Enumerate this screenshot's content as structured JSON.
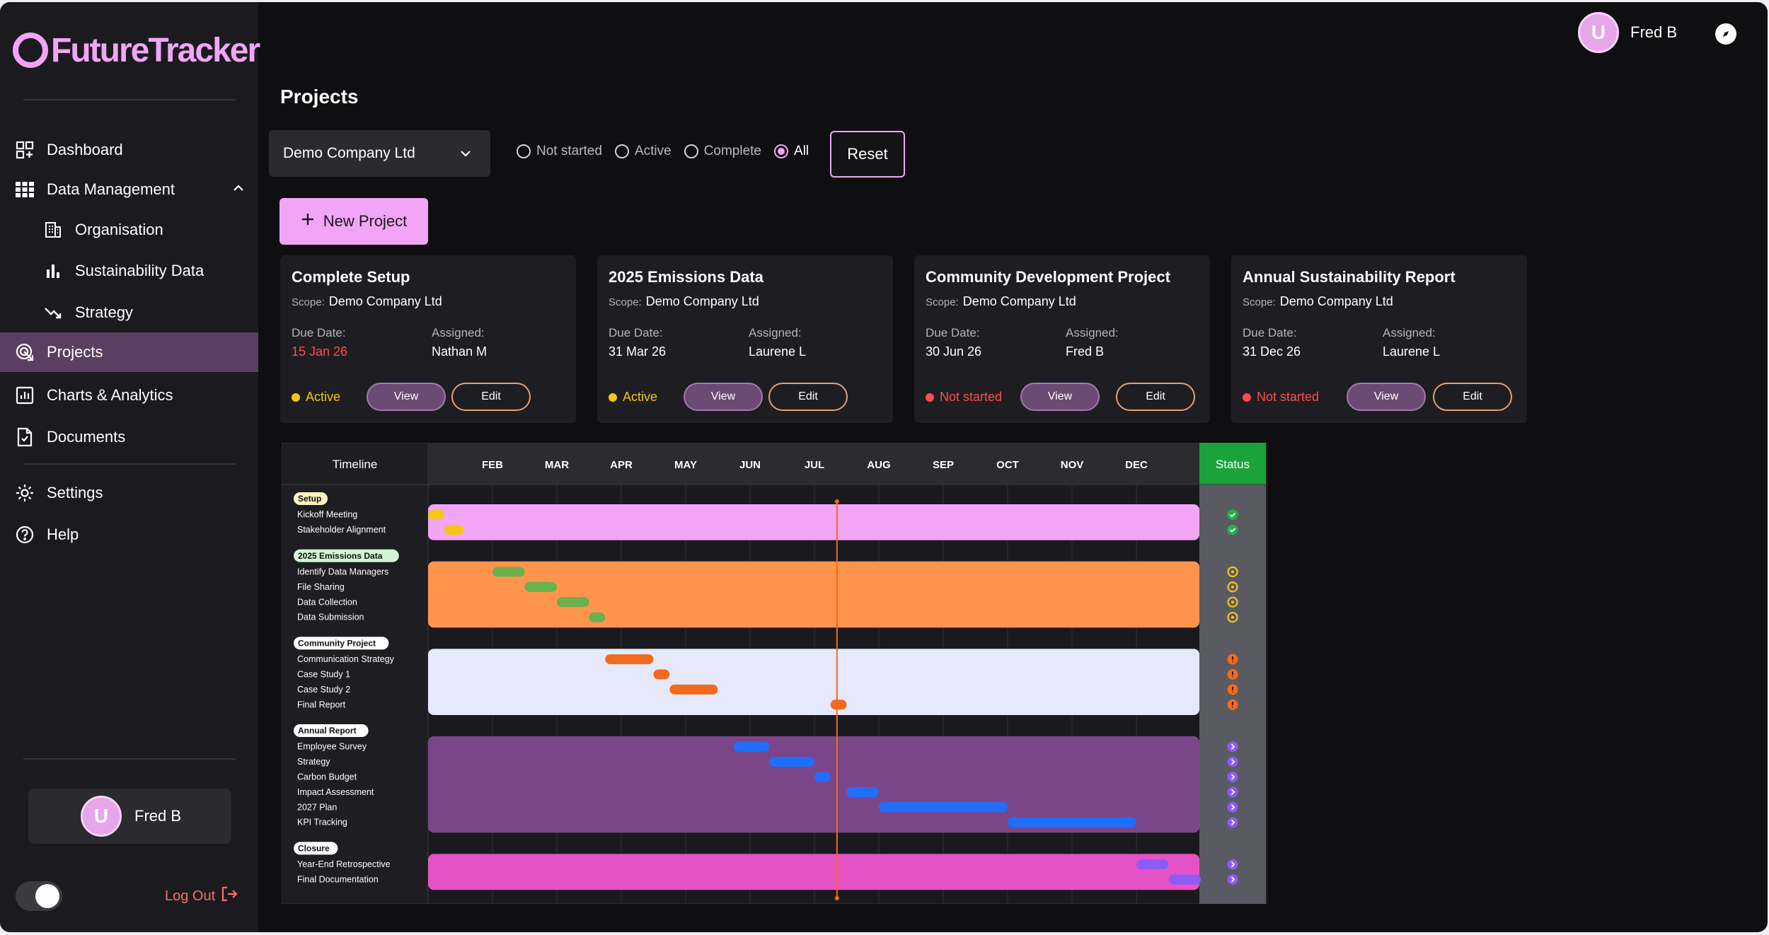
{
  "app": {
    "name": "FutureTracker"
  },
  "sidebar": {
    "items": [
      {
        "label": "Dashboard",
        "icon": "dashboard-icon"
      },
      {
        "label": "Data Management",
        "icon": "grid-icon"
      },
      {
        "label": "Organisation",
        "icon": "building-icon"
      },
      {
        "label": "Sustainability Data",
        "icon": "bar-chart-icon"
      },
      {
        "label": "Strategy",
        "icon": "trend-down-icon"
      },
      {
        "label": "Projects",
        "icon": "target-icon"
      },
      {
        "label": "Charts & Analytics",
        "icon": "analytics-icon"
      },
      {
        "label": "Documents",
        "icon": "document-icon"
      },
      {
        "label": "Settings",
        "icon": "gear-icon"
      },
      {
        "label": "Help",
        "icon": "help-icon"
      }
    ],
    "active": "Projects",
    "user": {
      "name": "Fred B",
      "initial": "U"
    },
    "logout_label": "Log Out"
  },
  "header": {
    "user_name": "Fred B",
    "initial": "U"
  },
  "page": {
    "title": "Projects"
  },
  "filters": {
    "company": "Demo Company Ltd",
    "options": [
      "Not started",
      "Active",
      "Complete",
      "All"
    ],
    "selected": "All",
    "reset_label": "Reset"
  },
  "new_project_label": "New Project",
  "card_labels": {
    "scope": "Scope:",
    "due": "Due Date:",
    "assigned": "Assigned:",
    "view": "View",
    "edit": "Edit"
  },
  "projects": [
    {
      "title": "Complete Setup",
      "scope": "Demo Company Ltd",
      "due": "15 Jan 26",
      "assigned": "Nathan M",
      "status": "Active",
      "overdue": true
    },
    {
      "title": "2025 Emissions Data",
      "scope": "Demo Company Ltd",
      "due": "31 Mar 26",
      "assigned": "Laurene L",
      "status": "Active",
      "overdue": false
    },
    {
      "title": "Community Development Project",
      "scope": "Demo Company Ltd",
      "due": "30 Jun 26",
      "assigned": "Fred B",
      "status": "Not started",
      "overdue": false
    },
    {
      "title": "Annual Sustainability Report",
      "scope": "Demo Company Ltd",
      "due": "31 Dec 26",
      "assigned": "Laurene L",
      "status": "Not started",
      "overdue": false
    }
  ],
  "colors": {
    "accent": "#f2a5f6",
    "active": "#f5c518",
    "not_started": "#ff4d4d",
    "overdue": "#ff4d4d",
    "status_header": "#1aa33a"
  },
  "chart_data": {
    "type": "gantt",
    "header_label": "Timeline",
    "status_label": "Status",
    "months": [
      "FEB",
      "MAR",
      "APR",
      "MAY",
      "JUN",
      "JUL",
      "AUG",
      "SEP",
      "OCT",
      "NOV",
      "DEC"
    ],
    "today_month_index": 6.35,
    "groups": [
      {
        "label": "Setup",
        "color": "#f2a5f6",
        "tag_bg": "#fff3c4",
        "tasks": [
          {
            "name": "Kickoff Meeting",
            "start": 0,
            "end": 0.25,
            "color": "#f5c518",
            "status": "check"
          },
          {
            "name": "Stakeholder Alignment",
            "start": 0.25,
            "end": 0.55,
            "color": "#f5c518",
            "status": "check"
          }
        ]
      },
      {
        "label": "2025 Emissions Data",
        "color": "#ff944d",
        "tag_bg": "#d4f3d4",
        "tasks": [
          {
            "name": "Identify Data Managers",
            "start": 1,
            "end": 1.5,
            "color": "#6ab04c",
            "status": "gear"
          },
          {
            "name": "File Sharing",
            "start": 1.5,
            "end": 2,
            "color": "#6ab04c",
            "status": "gear"
          },
          {
            "name": "Data Collection",
            "start": 2,
            "end": 2.5,
            "color": "#6ab04c",
            "status": "gear"
          },
          {
            "name": "Data Submission",
            "start": 2.5,
            "end": 2.75,
            "color": "#6ab04c",
            "status": "gear"
          }
        ]
      },
      {
        "label": "Community Project",
        "color": "#e6e9fb",
        "tag_bg": "#ffffff",
        "tasks": [
          {
            "name": "Communication Strategy",
            "start": 2.75,
            "end": 3.5,
            "color": "#f26b1d",
            "status": "alert"
          },
          {
            "name": "Case Study 1",
            "start": 3.5,
            "end": 3.75,
            "color": "#f26b1d",
            "status": "alert"
          },
          {
            "name": "Case Study 2",
            "start": 3.75,
            "end": 4.5,
            "color": "#f26b1d",
            "status": "alert"
          },
          {
            "name": "Final Report",
            "start": 6.25,
            "end": 6.5,
            "color": "#f26b1d",
            "status": "alert"
          }
        ]
      },
      {
        "label": "Annual Report",
        "color": "#7b4689",
        "tag_bg": "#ffffff",
        "tasks": [
          {
            "name": "Employee Survey",
            "start": 4.75,
            "end": 5.3,
            "color": "#1f6fff",
            "status": "arrow"
          },
          {
            "name": "Strategy",
            "start": 5.3,
            "end": 6,
            "color": "#1f6fff",
            "status": "arrow"
          },
          {
            "name": "Carbon Budget",
            "start": 6,
            "end": 6.25,
            "color": "#1f6fff",
            "status": "arrow"
          },
          {
            "name": "Impact Assessment",
            "start": 6.5,
            "end": 7,
            "color": "#1f6fff",
            "status": "arrow"
          },
          {
            "name": "2027 Plan",
            "start": 7,
            "end": 9,
            "color": "#1f6fff",
            "status": "arrow"
          },
          {
            "name": "KPI Tracking",
            "start": 9,
            "end": 11,
            "color": "#1f6fff",
            "status": "arrow"
          }
        ]
      },
      {
        "label": "Closure",
        "color": "#e552c6",
        "tag_bg": "#ffffff",
        "tasks": [
          {
            "name": "Year-End Retrospective",
            "start": 11,
            "end": 11.5,
            "color": "#8b5cf6",
            "status": "arrow"
          },
          {
            "name": "Final Documentation",
            "start": 11.5,
            "end": 12,
            "color": "#8b5cf6",
            "status": "arrow"
          }
        ]
      }
    ]
  }
}
